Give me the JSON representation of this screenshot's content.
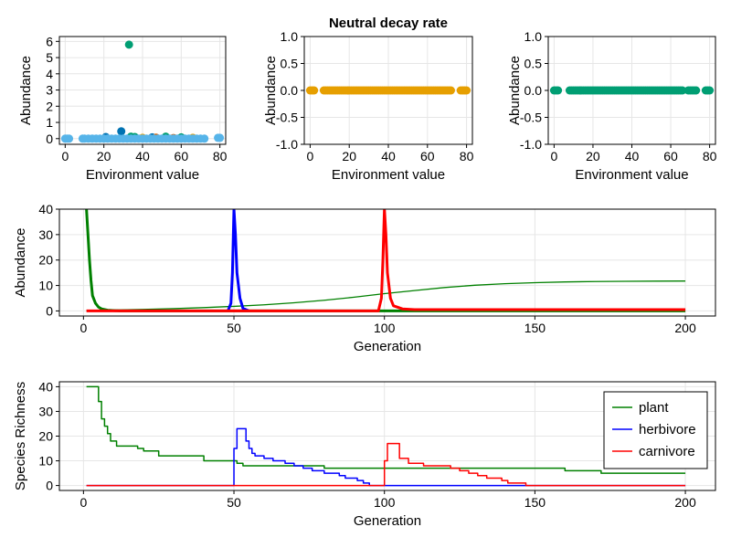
{
  "figure": {
    "background": "#ffffff",
    "grid_color": "#e6e6e6",
    "axis_color": "#000000"
  },
  "chart_data": [
    {
      "type": "scatter",
      "title": "",
      "xlabel": "Environment value",
      "ylabel": "Abundance",
      "xlim": [
        -3,
        83
      ],
      "ylim": [
        -0.35,
        6.3
      ],
      "xticks": [
        0,
        20,
        40,
        60,
        80
      ],
      "yticks": [
        0,
        1,
        2,
        3,
        4,
        5,
        6
      ],
      "grid": true,
      "series": [
        {
          "color": "#009e73",
          "points": [
            [
              33,
              5.8
            ],
            [
              34,
              0.12
            ],
            [
              36,
              0.1
            ],
            [
              52,
              0.12
            ],
            [
              60,
              0.08
            ]
          ]
        },
        {
          "color": "#0072b2",
          "points": [
            [
              29,
              0.45
            ],
            [
              21,
              0.1
            ],
            [
              45,
              0.08
            ]
          ]
        },
        {
          "color": "#e69f00",
          "points": [
            [
              40,
              0.05
            ],
            [
              66,
              0.05
            ]
          ]
        },
        {
          "color": "#d55e00",
          "points": [
            [
              47,
              0.06
            ],
            [
              56,
              0.04
            ]
          ]
        },
        {
          "color": "#56b4e9",
          "points": [
            [
              0,
              0
            ],
            [
              1,
              0
            ],
            [
              2,
              0
            ],
            [
              9,
              0
            ],
            [
              10,
              0
            ],
            [
              12,
              0
            ],
            [
              14,
              0
            ],
            [
              16,
              0
            ],
            [
              18,
              0
            ],
            [
              20,
              0
            ],
            [
              22,
              0
            ],
            [
              24,
              0
            ],
            [
              26,
              0
            ],
            [
              28,
              0
            ],
            [
              30,
              0
            ],
            [
              32,
              0
            ],
            [
              34,
              0
            ],
            [
              36,
              0
            ],
            [
              38,
              0
            ],
            [
              40,
              0
            ],
            [
              42,
              0
            ],
            [
              44,
              0
            ],
            [
              46,
              0
            ],
            [
              48,
              0
            ],
            [
              50,
              0
            ],
            [
              52,
              0
            ],
            [
              54,
              0
            ],
            [
              56,
              0
            ],
            [
              58,
              0
            ],
            [
              60,
              0
            ],
            [
              62,
              0
            ],
            [
              64,
              0
            ],
            [
              66,
              0
            ],
            [
              68,
              0
            ],
            [
              70,
              0
            ],
            [
              72,
              0
            ],
            [
              79,
              0.05
            ],
            [
              80,
              0.05
            ]
          ]
        }
      ]
    },
    {
      "type": "scatter",
      "title": "Neutral decay rate",
      "xlabel": "Environment value",
      "ylabel": "Abundance",
      "xlim": [
        -3,
        83
      ],
      "ylim": [
        -1.0,
        1.0
      ],
      "xticks": [
        0,
        20,
        40,
        60,
        80
      ],
      "yticks": [
        -1.0,
        -0.5,
        0.0,
        0.5,
        1.0
      ],
      "ytick_labels": [
        "-1.0",
        "-0.5",
        "0.0",
        "0.5",
        "1.0"
      ],
      "grid": true,
      "series": [
        {
          "color": "#e69f00",
          "x_ranges": [
            [
              0,
              2
            ],
            [
              7,
              72
            ],
            [
              77,
              80
            ]
          ],
          "y": 0.0
        }
      ]
    },
    {
      "type": "scatter",
      "title": "",
      "xlabel": "Environment value",
      "ylabel": "Abundance",
      "xlim": [
        -3,
        83
      ],
      "ylim": [
        -1.0,
        1.0
      ],
      "xticks": [
        0,
        20,
        40,
        60,
        80
      ],
      "yticks": [
        -1.0,
        -0.5,
        0.0,
        0.5,
        1.0
      ],
      "ytick_labels": [
        "-1.0",
        "-0.5",
        "0.0",
        "0.5",
        "1.0"
      ],
      "grid": true,
      "series": [
        {
          "color": "#009e73",
          "x_ranges": [
            [
              0,
              2
            ],
            [
              8,
              66
            ],
            [
              69,
              73
            ],
            [
              78,
              80
            ]
          ],
          "y": 0.0
        }
      ]
    },
    {
      "type": "line",
      "title": "",
      "xlabel": "Generation",
      "ylabel": "Abundance",
      "xlim": [
        -8,
        210
      ],
      "ylim": [
        -2,
        40
      ],
      "xticks": [
        0,
        50,
        100,
        150,
        200
      ],
      "yticks": [
        0,
        10,
        20,
        30,
        40
      ],
      "grid": true,
      "series": [
        {
          "color": "#008000",
          "width": 1.3,
          "x": [
            1,
            10,
            20,
            30,
            40,
            50,
            60,
            70,
            80,
            90,
            100,
            110,
            120,
            130,
            140,
            150,
            160,
            170,
            180,
            190,
            200
          ],
          "y": [
            0.2,
            0.35,
            0.6,
            0.9,
            1.3,
            1.8,
            2.4,
            3.2,
            4.2,
            5.4,
            6.8,
            8.0,
            9.2,
            10.1,
            10.7,
            11.1,
            11.4,
            11.55,
            11.65,
            11.7,
            11.75
          ]
        },
        {
          "color": "#008000",
          "width": 3,
          "x": [
            1,
            1.5,
            2,
            2.5,
            3,
            4,
            5,
            6,
            8,
            12,
            200
          ],
          "y": [
            40,
            30,
            20,
            12,
            6,
            3,
            1.5,
            0.8,
            0.3,
            0,
            0
          ]
        },
        {
          "color": "#0000ff",
          "width": 3,
          "x": [
            48,
            49,
            49.5,
            50,
            50.5,
            51,
            52,
            53,
            55
          ],
          "y": [
            0,
            3,
            15,
            40,
            30,
            15,
            5,
            1,
            0
          ]
        },
        {
          "color": "#ff0000",
          "width": 3,
          "x": [
            1,
            98,
            99,
            99.5,
            100,
            100.5,
            101,
            102,
            103,
            106,
            110,
            200
          ],
          "y": [
            0,
            0,
            5,
            20,
            40,
            30,
            15,
            5,
            2,
            0.8,
            0.5,
            0.5
          ]
        }
      ]
    },
    {
      "type": "line",
      "title": "",
      "xlabel": "Generation",
      "ylabel": "Species Richness",
      "xlim": [
        -8,
        210
      ],
      "ylim": [
        -2,
        42
      ],
      "xticks": [
        0,
        50,
        100,
        150,
        200
      ],
      "yticks": [
        0,
        10,
        20,
        30,
        40
      ],
      "grid": true,
      "legend": {
        "position": "top-right",
        "entries": [
          {
            "label": "plant",
            "color": "#008000"
          },
          {
            "label": "herbivore",
            "color": "#0000ff"
          },
          {
            "label": "carnivore",
            "color": "#ff0000"
          }
        ]
      },
      "series": [
        {
          "name": "plant",
          "color": "#008000",
          "width": 1.5,
          "step": true,
          "x": [
            1,
            4,
            5,
            6,
            7,
            8,
            9,
            10,
            11,
            18,
            20,
            25,
            40,
            51,
            53,
            55,
            57,
            80,
            90,
            160,
            172,
            200
          ],
          "y": [
            40,
            40,
            34,
            27,
            24,
            21,
            18,
            18,
            16,
            15,
            14,
            12,
            10,
            9,
            8,
            8,
            8,
            7,
            7,
            6,
            5,
            5
          ]
        },
        {
          "name": "herbivore",
          "color": "#0000ff",
          "width": 1.5,
          "step": true,
          "x": [
            1,
            49,
            50,
            51,
            53,
            54,
            55,
            56,
            57,
            60,
            63,
            67,
            70,
            73,
            76,
            80,
            85,
            87,
            91,
            93,
            95,
            200
          ],
          "y": [
            0,
            0,
            15,
            23,
            23,
            18,
            15,
            13,
            12,
            11,
            10,
            9,
            8,
            7,
            6,
            5,
            4,
            3,
            2,
            1,
            0,
            0
          ]
        },
        {
          "name": "carnivore",
          "color": "#ff0000",
          "width": 1.5,
          "step": true,
          "x": [
            1,
            99,
            100,
            101,
            103,
            105,
            108,
            113,
            122,
            125,
            128,
            131,
            134,
            136,
            139,
            141,
            144,
            147,
            200
          ],
          "y": [
            0,
            0,
            10,
            17,
            17,
            11,
            9,
            8,
            7,
            6,
            5,
            4,
            3,
            3,
            2,
            1,
            1,
            0,
            0
          ]
        }
      ]
    }
  ]
}
